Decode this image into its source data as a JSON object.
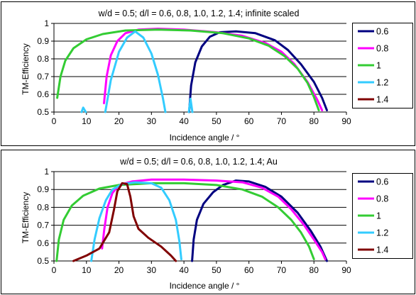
{
  "chart_data": [
    {
      "type": "line",
      "title": "w/d = 0.5; d/l = 0.6, 0.8, 1.0, 1.2, 1.4; infinite scaled",
      "xlabel": "Incidence angle / °",
      "ylabel": "TM-Efficiency",
      "xlim": [
        0,
        90
      ],
      "ylim": [
        0.5,
        1.0
      ],
      "xticks": [
        "0",
        "10",
        "20",
        "30",
        "40",
        "50",
        "60",
        "70",
        "80",
        "90"
      ],
      "yticks": [
        "0.5",
        "0.6",
        "0.7",
        "0.8",
        "0.9",
        "1"
      ],
      "grid": "horizontal",
      "legend": "right",
      "series": [
        {
          "name": "0.6",
          "color": "#000080",
          "points": [
            [
              41.6,
              0.5
            ],
            [
              42.2,
              0.65
            ],
            [
              43.5,
              0.78
            ],
            [
              45.5,
              0.87
            ],
            [
              48,
              0.925
            ],
            [
              51,
              0.95
            ],
            [
              56,
              0.955
            ],
            [
              62,
              0.945
            ],
            [
              68,
              0.905
            ],
            [
              72,
              0.85
            ],
            [
              76,
              0.77
            ],
            [
              80,
              0.67
            ],
            [
              82.5,
              0.58
            ],
            [
              84,
              0.51
            ]
          ]
        },
        {
          "name": "0.8",
          "color": "#FF00FF",
          "points": [
            [
              15.4,
              0.55
            ],
            [
              16.2,
              0.7
            ],
            [
              17.5,
              0.82
            ],
            [
              19.5,
              0.9
            ],
            [
              22,
              0.945
            ],
            [
              26,
              0.965
            ],
            [
              32,
              0.97
            ],
            [
              40,
              0.965
            ],
            [
              50,
              0.95
            ],
            [
              58,
              0.93
            ],
            [
              65,
              0.89
            ],
            [
              70,
              0.84
            ],
            [
              74,
              0.77
            ],
            [
              78,
              0.67
            ],
            [
              81,
              0.57
            ],
            [
              82.5,
              0.51
            ]
          ]
        },
        {
          "name": "1",
          "color": "#33CC33",
          "points": [
            [
              1.0,
              0.58
            ],
            [
              2.0,
              0.7
            ],
            [
              3.5,
              0.79
            ],
            [
              6,
              0.86
            ],
            [
              10,
              0.91
            ],
            [
              15,
              0.94
            ],
            [
              22,
              0.96
            ],
            [
              32,
              0.965
            ],
            [
              42,
              0.96
            ],
            [
              52,
              0.945
            ],
            [
              60,
              0.915
            ],
            [
              66,
              0.875
            ],
            [
              71,
              0.815
            ],
            [
              75,
              0.745
            ],
            [
              78,
              0.665
            ],
            [
              80,
              0.585
            ],
            [
              81.5,
              0.51
            ]
          ]
        },
        {
          "name": "1.2",
          "color": "#33CCFF",
          "points": [
            [
              8.5,
              0.5
            ],
            [
              9.0,
              0.525
            ],
            [
              9.8,
              0.5
            ],
            null,
            [
              15.8,
              0.5
            ],
            [
              17.5,
              0.68
            ],
            [
              20,
              0.84
            ],
            [
              22.5,
              0.92
            ],
            [
              25,
              0.955
            ],
            [
              27.5,
              0.92
            ],
            [
              30,
              0.83
            ],
            [
              32,
              0.71
            ],
            [
              33.5,
              0.58
            ],
            [
              34.3,
              0.5
            ],
            null,
            [
              41.5,
              0.5
            ],
            [
              42.0,
              0.575
            ],
            [
              42.6,
              0.5
            ]
          ]
        },
        {
          "name": "1.4",
          "color": "#800000",
          "points": []
        }
      ]
    },
    {
      "type": "line",
      "title": "w/d = 0.5; d/l = 0.6, 0.8, 1.0, 1.2, 1.4; Au",
      "xlabel": "Incidence angle / °",
      "ylabel": "TM-Efficiency",
      "xlim": [
        0,
        90
      ],
      "ylim": [
        0.5,
        1.0
      ],
      "xticks": [
        "0",
        "10",
        "20",
        "30",
        "40",
        "50",
        "60",
        "70",
        "80",
        "90"
      ],
      "yticks": [
        "0.5",
        "0.6",
        "0.7",
        "0.8",
        "0.9",
        "1"
      ],
      "grid": "horizontal",
      "legend": "right",
      "series": [
        {
          "name": "0.6",
          "color": "#000080",
          "points": [
            [
              42.5,
              0.5
            ],
            [
              43,
              0.62
            ],
            [
              44,
              0.73
            ],
            [
              46,
              0.82
            ],
            [
              49,
              0.885
            ],
            [
              52,
              0.925
            ],
            [
              56,
              0.95
            ],
            [
              60,
              0.945
            ],
            [
              65,
              0.915
            ],
            [
              70,
              0.86
            ],
            [
              75,
              0.77
            ],
            [
              79,
              0.67
            ],
            [
              82,
              0.58
            ],
            [
              84,
              0.5
            ]
          ]
        },
        {
          "name": "0.8",
          "color": "#FF00FF",
          "points": [
            [
              14.8,
              0.57
            ],
            [
              15.5,
              0.68
            ],
            [
              16.5,
              0.8
            ],
            [
              18,
              0.88
            ],
            [
              20,
              0.925
            ],
            [
              24,
              0.945
            ],
            [
              30,
              0.955
            ],
            [
              40,
              0.955
            ],
            [
              50,
              0.95
            ],
            [
              58,
              0.94
            ],
            [
              64,
              0.91
            ],
            [
              69,
              0.86
            ],
            [
              73,
              0.79
            ],
            [
              77,
              0.7
            ],
            [
              80,
              0.62
            ],
            [
              82.5,
              0.55
            ],
            [
              83.5,
              0.51
            ]
          ]
        },
        {
          "name": "1",
          "color": "#33CC33",
          "points": [
            [
              0.8,
              0.5
            ],
            [
              1.5,
              0.62
            ],
            [
              3,
              0.73
            ],
            [
              5.5,
              0.81
            ],
            [
              9,
              0.865
            ],
            [
              14,
              0.905
            ],
            [
              20,
              0.925
            ],
            [
              30,
              0.935
            ],
            [
              40,
              0.935
            ],
            [
              50,
              0.925
            ],
            [
              58,
              0.9
            ],
            [
              64,
              0.86
            ],
            [
              69,
              0.8
            ],
            [
              73,
              0.73
            ],
            [
              76,
              0.66
            ],
            [
              78.5,
              0.58
            ],
            [
              80,
              0.51
            ]
          ]
        },
        {
          "name": "1.2",
          "color": "#33CCFF",
          "points": [
            [
              11.5,
              0.5
            ],
            [
              12.5,
              0.62
            ],
            [
              14,
              0.74
            ],
            [
              16,
              0.84
            ],
            [
              18,
              0.9
            ],
            [
              21,
              0.93
            ],
            [
              25,
              0.94
            ],
            [
              30,
              0.935
            ],
            [
              33,
              0.91
            ],
            [
              35.5,
              0.84
            ],
            [
              37.5,
              0.73
            ],
            [
              38.6,
              0.61
            ],
            [
              39.2,
              0.51
            ]
          ]
        },
        {
          "name": "1.4",
          "color": "#800000",
          "points": [
            [
              6,
              0.5
            ],
            [
              10,
              0.53
            ],
            [
              14,
              0.57
            ],
            [
              17,
              0.66
            ],
            [
              18.5,
              0.79
            ],
            [
              19.5,
              0.89
            ],
            [
              21,
              0.935
            ],
            [
              22.5,
              0.93
            ],
            [
              23.5,
              0.86
            ],
            [
              24.5,
              0.75
            ],
            [
              26,
              0.68
            ],
            [
              29,
              0.63
            ],
            [
              33,
              0.58
            ],
            [
              36,
              0.53
            ],
            [
              37.5,
              0.5
            ]
          ]
        }
      ]
    }
  ]
}
